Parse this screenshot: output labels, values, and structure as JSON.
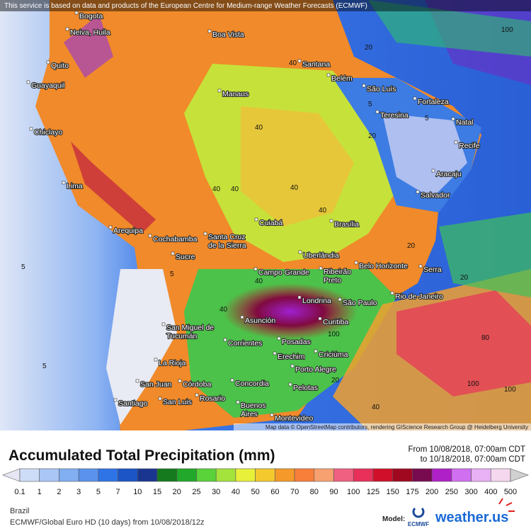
{
  "header": {
    "notice": "This service is based on data and products of the European Centre for Medium-range Weather Forecasts (ECMWF)",
    "attribution": "Map data © OpenStreetMap contributors, rendering GIScience Research Group @ Heidelberg University"
  },
  "cities": [
    "Bogota",
    "Neiva, Huila",
    "Quito",
    "Guayaquil",
    "Chiclayo",
    "Lima",
    "Arequipa",
    "Cochabamba",
    "Sucre",
    [
      "Santa Cruz",
      "de la Sierra"
    ],
    [
      "San Miguel de",
      "Tucumán"
    ],
    "La Rioja",
    "San Juan",
    "Córdoba",
    "Santiago",
    "San Luis",
    "Rosario",
    [
      "Buenos",
      "Aires"
    ],
    "Montevideo",
    "Concordia",
    "Corrientes",
    "Asunción",
    "Posadas",
    "Erechim",
    "Criciúma",
    "Porto Alegre",
    "Pelotas",
    "Curitiba",
    "Londrina",
    "São Paulo",
    "Rio de Janeiro",
    "Serra",
    "Belo Horizonte",
    [
      "Ribeirão",
      "Preto"
    ],
    "Campo Grande",
    "Uberlândia",
    "Brasília",
    "Cuiabá",
    "Salvador",
    "Aracaju",
    "Recife",
    "Natal",
    "Fortaleza",
    "Teresina",
    "São Luís",
    "Belém",
    "Santana",
    "Manaus",
    "Boa Vista"
  ],
  "contour_labels": [
    "40",
    "40",
    "40",
    "40",
    "40",
    "40",
    "40",
    "40",
    "20",
    "20",
    "20",
    "20",
    "5",
    "5",
    "5",
    "5",
    "5",
    "100",
    "100",
    "100",
    "80",
    "40",
    "20",
    "100"
  ],
  "legend": {
    "title": "Accumulated Total Precipitation (mm)",
    "period_from": "From 10/08/2018, 07:00am CDT",
    "period_to": "to 10/18/2018, 07:00am CDT",
    "labels": [
      0.1,
      1,
      2,
      3,
      5,
      7,
      10,
      15,
      20,
      25,
      30,
      40,
      50,
      60,
      70,
      80,
      90,
      100,
      125,
      150,
      175,
      200,
      250,
      300,
      400,
      500
    ],
    "colors": [
      "#e6e6f5",
      "#cddcf7",
      "#a9c6f6",
      "#82aef2",
      "#5b92ee",
      "#2f74e6",
      "#1b55c6",
      "#1a3590",
      "#157a1e",
      "#22a82a",
      "#5ad23a",
      "#a4e33c",
      "#e8f03a",
      "#f3c92e",
      "#f59a2a",
      "#f77f3a",
      "#f7a070",
      "#f06080",
      "#e8305a",
      "#d0102a",
      "#a00820",
      "#780a50",
      "#b020c8",
      "#d070f0",
      "#e8b0f5",
      "#f5d8ee",
      "#d0d0d0"
    ]
  },
  "footer": {
    "region": "Brazil",
    "model_run": "ECMWF/Global Euro HD (10 days) from 10/08/2018/12z",
    "model_label": "Model:",
    "ecmwf": "ECMWF",
    "brand": "weather.us"
  }
}
